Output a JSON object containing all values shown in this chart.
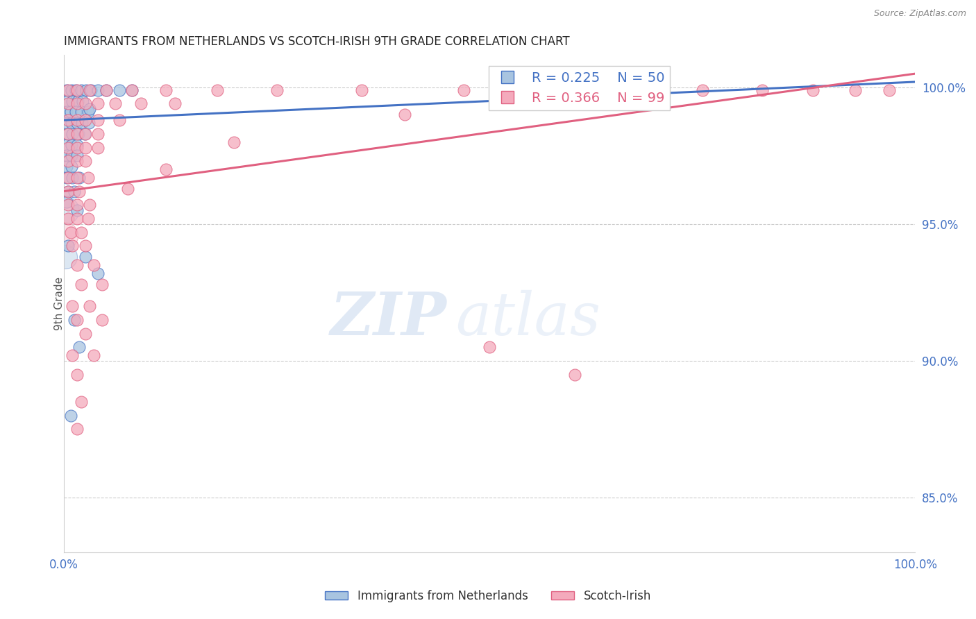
{
  "title": "IMMIGRANTS FROM NETHERLANDS VS SCOTCH-IRISH 9TH GRADE CORRELATION CHART",
  "source": "Source: ZipAtlas.com",
  "ylabel": "9th Grade",
  "right_yticks": [
    85.0,
    90.0,
    95.0,
    100.0
  ],
  "right_ytick_labels": [
    "85.0%",
    "90.0%",
    "95.0%",
    "100.0%"
  ],
  "legend_label1": "Immigrants from Netherlands",
  "legend_label2": "Scotch-Irish",
  "blue_R": 0.225,
  "blue_N": 50,
  "pink_R": 0.366,
  "pink_N": 99,
  "blue_color": "#A8C4E0",
  "pink_color": "#F4AABC",
  "blue_line_color": "#4472C4",
  "pink_line_color": "#E06080",
  "watermark_zip": "ZIP",
  "watermark_atlas": "atlas",
  "blue_points": [
    [
      0.3,
      99.9
    ],
    [
      0.9,
      99.9
    ],
    [
      1.4,
      99.9
    ],
    [
      2.0,
      99.9
    ],
    [
      2.6,
      99.9
    ],
    [
      3.2,
      99.9
    ],
    [
      4.0,
      99.9
    ],
    [
      5.0,
      99.9
    ],
    [
      6.5,
      99.9
    ],
    [
      8.0,
      99.9
    ],
    [
      0.4,
      99.5
    ],
    [
      1.0,
      99.5
    ],
    [
      1.6,
      99.5
    ],
    [
      2.2,
      99.5
    ],
    [
      0.3,
      99.1
    ],
    [
      0.8,
      99.1
    ],
    [
      1.4,
      99.1
    ],
    [
      2.0,
      99.1
    ],
    [
      2.8,
      99.1
    ],
    [
      0.3,
      98.7
    ],
    [
      0.9,
      98.7
    ],
    [
      1.5,
      98.7
    ],
    [
      2.1,
      98.7
    ],
    [
      2.9,
      98.7
    ],
    [
      0.4,
      98.3
    ],
    [
      1.0,
      98.3
    ],
    [
      1.7,
      98.3
    ],
    [
      2.4,
      98.3
    ],
    [
      0.3,
      97.9
    ],
    [
      0.9,
      97.9
    ],
    [
      1.5,
      97.9
    ],
    [
      0.3,
      97.5
    ],
    [
      0.9,
      97.5
    ],
    [
      1.5,
      97.5
    ],
    [
      0.3,
      97.1
    ],
    [
      0.9,
      97.1
    ],
    [
      0.3,
      96.7
    ],
    [
      1.0,
      96.7
    ],
    [
      1.8,
      96.7
    ],
    [
      0.5,
      96.2
    ],
    [
      1.2,
      96.2
    ],
    [
      1.5,
      95.5
    ],
    [
      2.5,
      93.8
    ],
    [
      4.0,
      93.2
    ],
    [
      1.2,
      91.5
    ],
    [
      1.8,
      90.5
    ],
    [
      0.8,
      88.0
    ],
    [
      3.0,
      99.2
    ],
    [
      0.3,
      95.8
    ],
    [
      0.5,
      94.2
    ]
  ],
  "pink_points": [
    [
      0.5,
      99.9
    ],
    [
      1.5,
      99.9
    ],
    [
      3.0,
      99.9
    ],
    [
      5.0,
      99.9
    ],
    [
      8.0,
      99.9
    ],
    [
      12.0,
      99.9
    ],
    [
      18.0,
      99.9
    ],
    [
      25.0,
      99.9
    ],
    [
      35.0,
      99.9
    ],
    [
      47.0,
      99.9
    ],
    [
      55.0,
      99.9
    ],
    [
      62.0,
      99.9
    ],
    [
      68.0,
      99.9
    ],
    [
      75.0,
      99.9
    ],
    [
      82.0,
      99.9
    ],
    [
      88.0,
      99.9
    ],
    [
      93.0,
      99.9
    ],
    [
      97.0,
      99.9
    ],
    [
      0.5,
      99.4
    ],
    [
      1.5,
      99.4
    ],
    [
      2.5,
      99.4
    ],
    [
      4.0,
      99.4
    ],
    [
      6.0,
      99.4
    ],
    [
      9.0,
      99.4
    ],
    [
      13.0,
      99.4
    ],
    [
      0.5,
      98.8
    ],
    [
      1.5,
      98.8
    ],
    [
      2.5,
      98.8
    ],
    [
      4.0,
      98.8
    ],
    [
      6.5,
      98.8
    ],
    [
      0.5,
      98.3
    ],
    [
      1.5,
      98.3
    ],
    [
      2.5,
      98.3
    ],
    [
      4.0,
      98.3
    ],
    [
      0.5,
      97.8
    ],
    [
      1.5,
      97.8
    ],
    [
      2.5,
      97.8
    ],
    [
      4.0,
      97.8
    ],
    [
      0.5,
      97.3
    ],
    [
      1.5,
      97.3
    ],
    [
      2.5,
      97.3
    ],
    [
      0.5,
      96.7
    ],
    [
      1.5,
      96.7
    ],
    [
      2.8,
      96.7
    ],
    [
      0.5,
      96.2
    ],
    [
      1.8,
      96.2
    ],
    [
      0.5,
      95.7
    ],
    [
      1.5,
      95.7
    ],
    [
      3.0,
      95.7
    ],
    [
      0.5,
      95.2
    ],
    [
      1.5,
      95.2
    ],
    [
      2.8,
      95.2
    ],
    [
      0.8,
      94.7
    ],
    [
      2.0,
      94.7
    ],
    [
      1.0,
      94.2
    ],
    [
      2.5,
      94.2
    ],
    [
      1.5,
      93.5
    ],
    [
      3.5,
      93.5
    ],
    [
      2.0,
      92.8
    ],
    [
      4.5,
      92.8
    ],
    [
      1.0,
      92.0
    ],
    [
      3.0,
      92.0
    ],
    [
      1.5,
      91.5
    ],
    [
      4.5,
      91.5
    ],
    [
      2.5,
      91.0
    ],
    [
      1.0,
      90.2
    ],
    [
      3.5,
      90.2
    ],
    [
      1.5,
      89.5
    ],
    [
      2.0,
      88.5
    ],
    [
      1.5,
      87.5
    ],
    [
      7.5,
      96.3
    ],
    [
      12.0,
      97.0
    ],
    [
      20.0,
      98.0
    ],
    [
      40.0,
      99.0
    ],
    [
      50.0,
      90.5
    ],
    [
      60.0,
      89.5
    ]
  ],
  "blue_large_points": [
    [
      0.15,
      95.5,
      800
    ],
    [
      0.15,
      93.8,
      600
    ]
  ],
  "pink_large_points": [
    [
      0.15,
      94.6,
      700
    ]
  ],
  "xmin": 0.0,
  "xmax": 100.0,
  "ymin": 83.0,
  "ymax": 101.2,
  "blue_trendline_x": [
    0.0,
    100.0
  ],
  "blue_trendline_y": [
    98.8,
    100.2
  ],
  "pink_trendline_x": [
    0.0,
    100.0
  ],
  "pink_trendline_y": [
    96.2,
    100.5
  ]
}
